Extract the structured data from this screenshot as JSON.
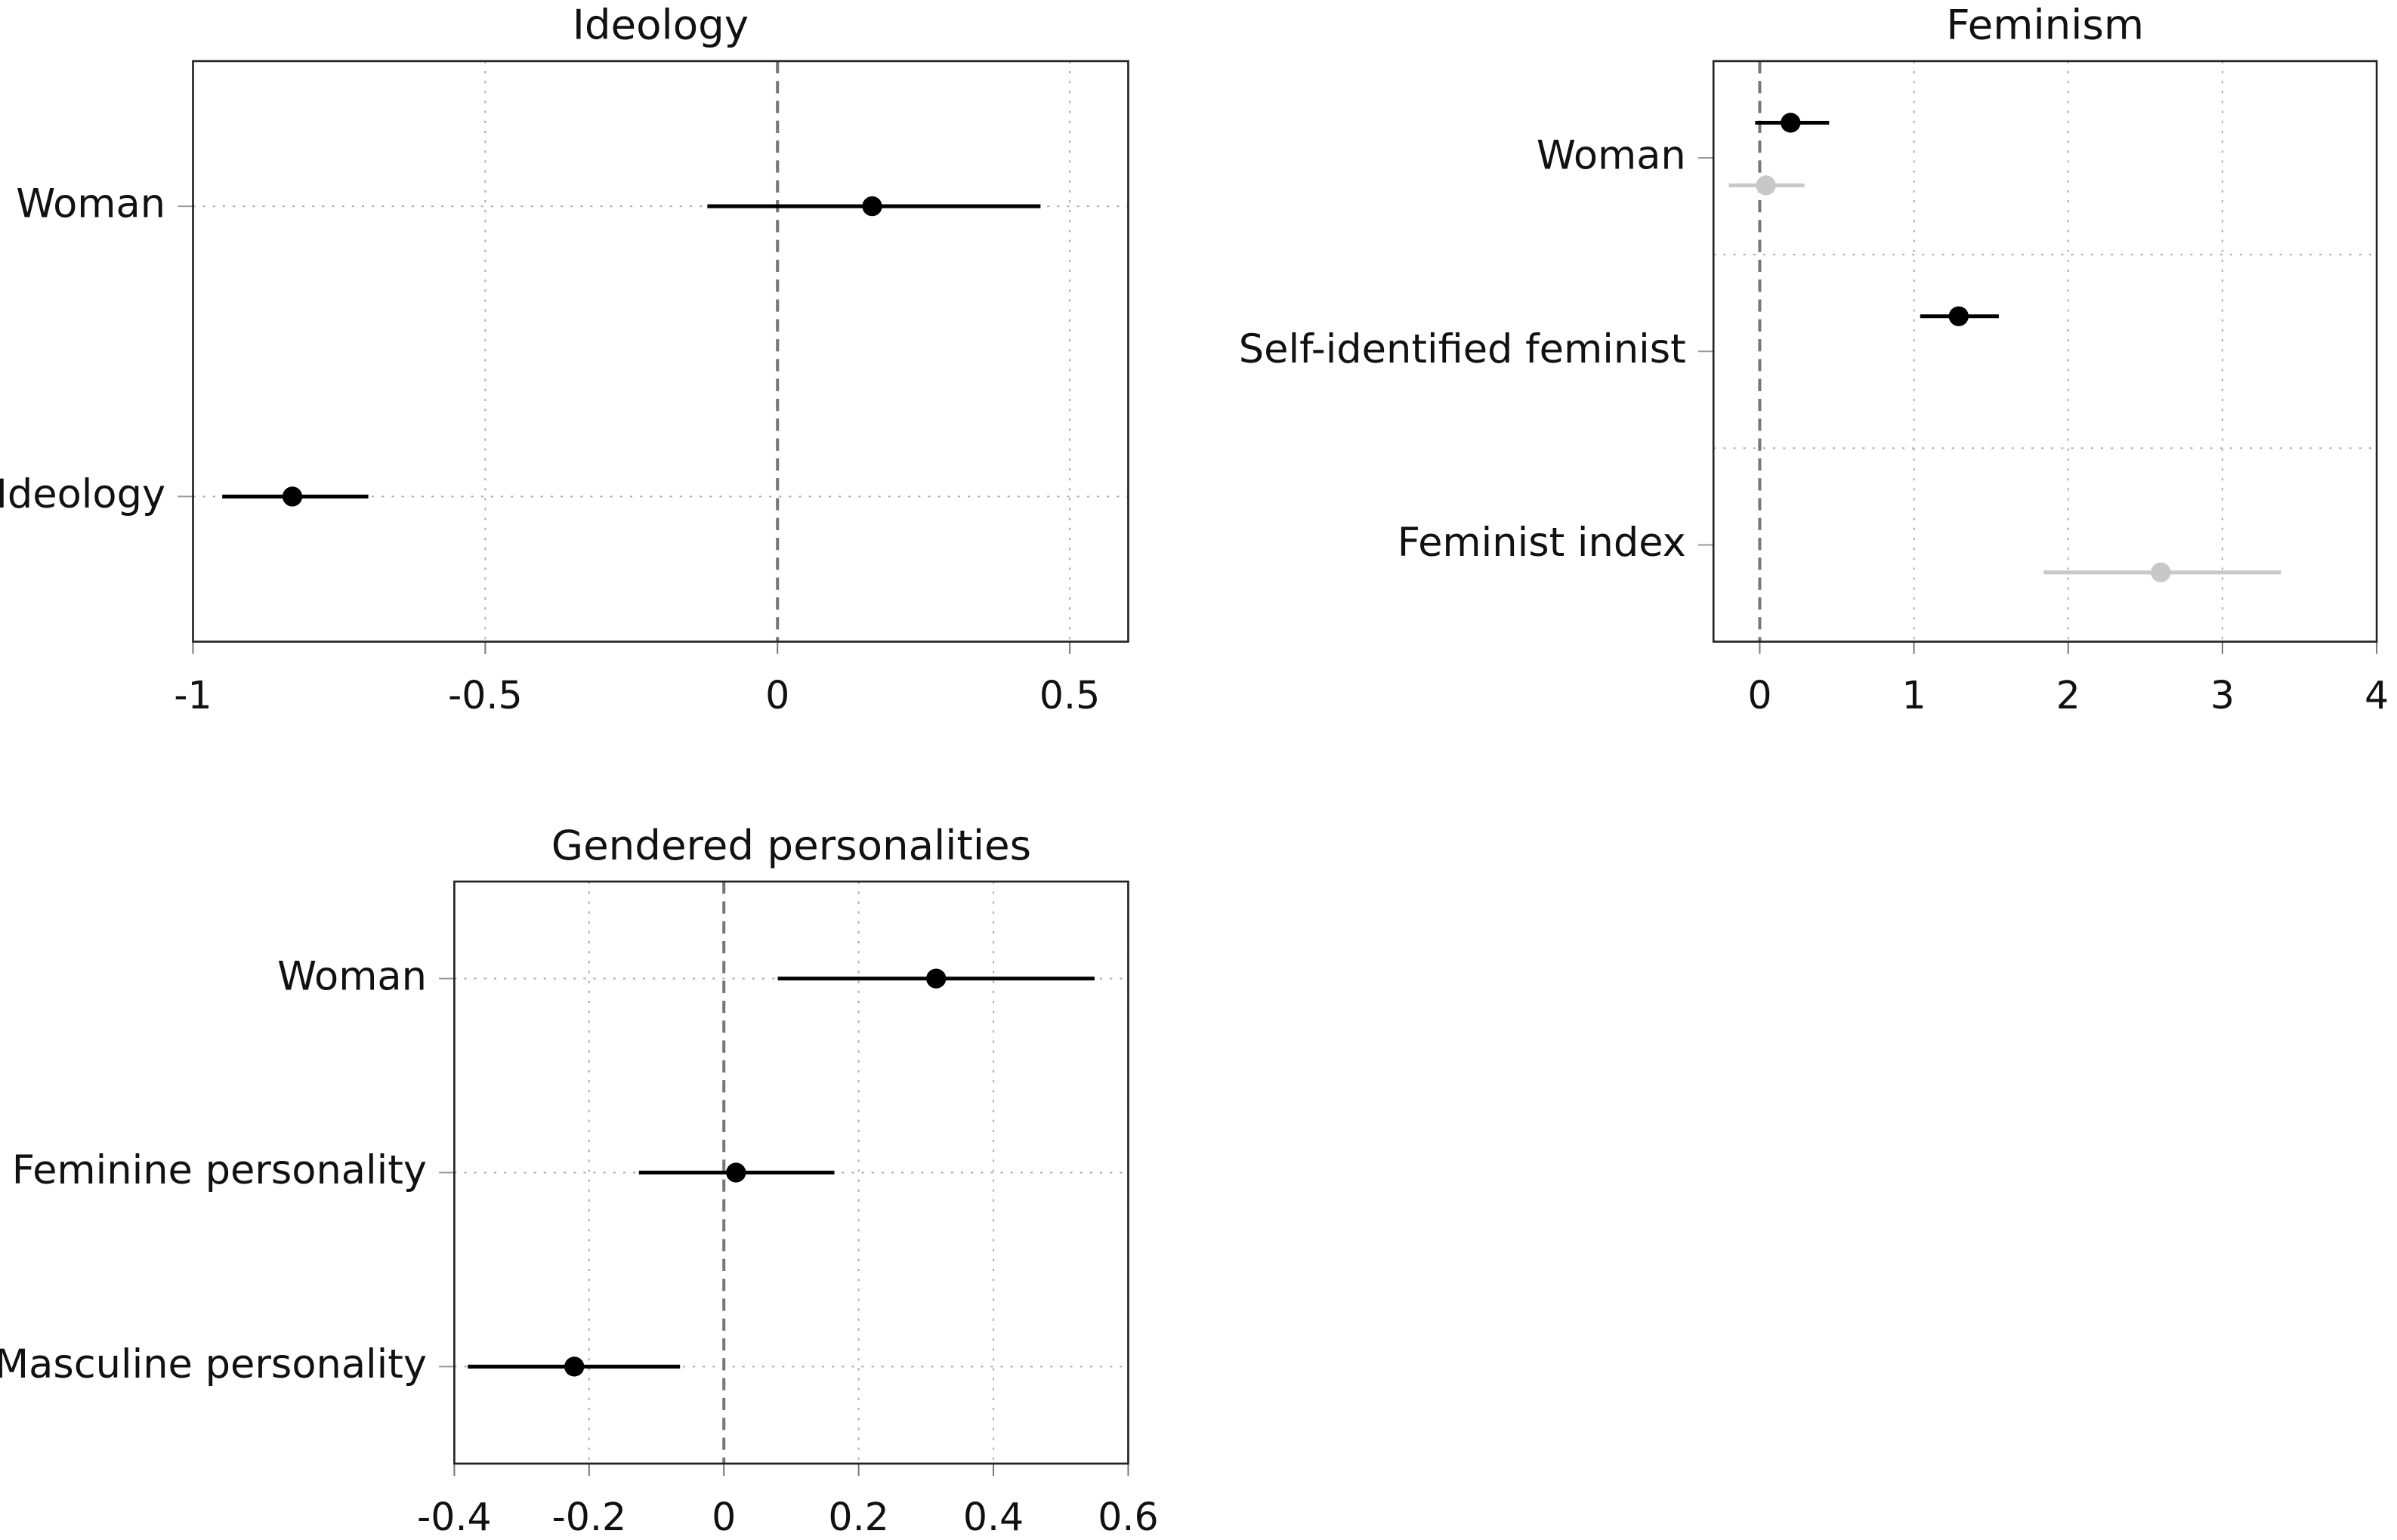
{
  "chart_data": [
    {
      "type": "dot-whisker",
      "title": "Ideology",
      "categories": [
        "Woman",
        "Ideology"
      ],
      "series": [
        {
          "color": "#000000",
          "values": [
            0.162,
            -0.83
          ],
          "lower": [
            -0.12,
            -0.95
          ],
          "upper": [
            0.45,
            -0.7
          ]
        }
      ],
      "xlim": [
        -1,
        0.6
      ],
      "xticks": [
        -1,
        -0.5,
        0,
        0.5
      ],
      "hgrid": "category"
    },
    {
      "type": "dot-whisker",
      "title": "Feminism",
      "categories": [
        "Woman",
        "Self-identified feminist",
        "Feminist index"
      ],
      "series": [
        {
          "color": "#000000",
          "values": [
            0.2,
            1.29,
            null
          ],
          "lower": [
            -0.03,
            1.04,
            null
          ],
          "upper": [
            0.45,
            1.55,
            null
          ]
        },
        {
          "color": "#c8c8c8",
          "values": [
            0.04,
            null,
            2.6
          ],
          "lower": [
            -0.2,
            null,
            1.84
          ],
          "upper": [
            0.29,
            null,
            3.38
          ]
        }
      ],
      "xlim": [
        -0.3,
        4
      ],
      "xticks": [
        0,
        1,
        2,
        3,
        4
      ],
      "hgrid": "between"
    },
    {
      "type": "dot-whisker",
      "title": "Gendered personalities",
      "categories": [
        "Woman",
        "Feminine personality",
        "Masculine personality"
      ],
      "series": [
        {
          "color": "#000000",
          "values": [
            0.315,
            0.018,
            -0.222
          ],
          "lower": [
            0.08,
            -0.126,
            -0.38
          ],
          "upper": [
            0.55,
            0.164,
            -0.065
          ]
        }
      ],
      "xlim": [
        -0.4,
        0.6
      ],
      "xticks": [
        -0.4,
        -0.2,
        0,
        0.2,
        0.4,
        0.6
      ],
      "hgrid": "category"
    }
  ]
}
